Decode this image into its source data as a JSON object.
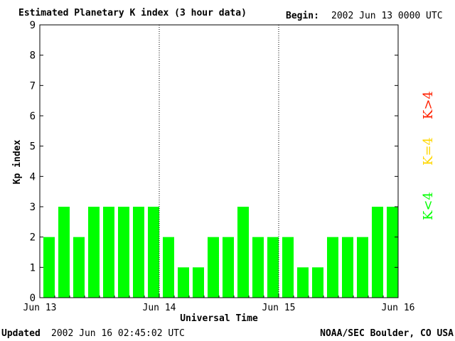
{
  "chart_data": {
    "type": "bar",
    "title": "Estimated Planetary K index (3 hour data)",
    "begin_label": "Begin:",
    "begin_value": "2002 Jun 13 0000 UTC",
    "xlabel": "Universal Time",
    "ylabel": "Kp index",
    "ylim": [
      0,
      9
    ],
    "yticks": [
      "0",
      "1",
      "2",
      "3",
      "4",
      "5",
      "6",
      "7",
      "8",
      "9"
    ],
    "day_labels": [
      "Jun 13",
      "Jun 14",
      "Jun 15",
      "Jun 16"
    ],
    "bars_per_day": 8,
    "values": [
      2,
      3,
      2,
      3,
      3,
      3,
      3,
      3,
      2,
      1,
      1,
      2,
      2,
      3,
      2,
      2,
      2,
      1,
      1,
      2,
      2,
      2,
      3,
      3
    ],
    "legend": [
      {
        "label": "K<4",
        "color": "#00ff00"
      },
      {
        "label": "K=4",
        "color": "#ffd700"
      },
      {
        "label": "K>4",
        "color": "#ff2000"
      }
    ],
    "bar_color": "#00ff00",
    "day_separators": "dotted",
    "grid": false
  },
  "footer": {
    "updated_label": "Updated",
    "updated_value": "2002 Jun 16 02:45:02 UTC",
    "source": "NOAA/SEC Boulder, CO USA"
  }
}
